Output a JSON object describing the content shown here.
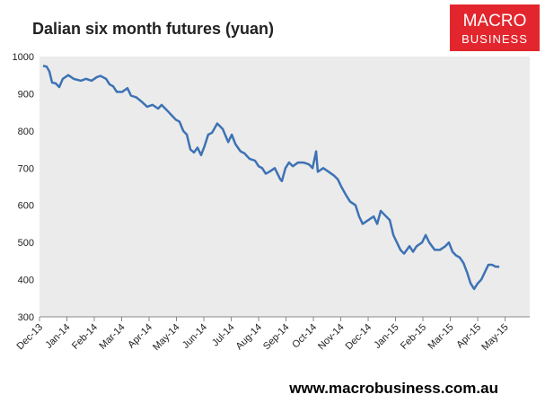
{
  "chart_data": {
    "type": "line",
    "title": "Dalian six month futures (yuan)",
    "logo": {
      "line1": "MACRO",
      "line2": "BUSINESS"
    },
    "footer": "www.macrobusiness.com.au",
    "xlim": [
      0,
      17.9
    ],
    "ylim": [
      300,
      1000
    ],
    "yticks": [
      300,
      400,
      500,
      600,
      700,
      800,
      900,
      1000
    ],
    "xticks": [
      {
        "value": 0,
        "label": "Dec-13"
      },
      {
        "value": 1,
        "label": "Jan-14"
      },
      {
        "value": 2,
        "label": "Feb-14"
      },
      {
        "value": 3,
        "label": "Mar-14"
      },
      {
        "value": 4,
        "label": "Apr-14"
      },
      {
        "value": 5,
        "label": "May-14"
      },
      {
        "value": 6,
        "label": "Jun-14"
      },
      {
        "value": 7,
        "label": "Jul-14"
      },
      {
        "value": 8,
        "label": "Aug-14"
      },
      {
        "value": 9,
        "label": "Sep-14"
      },
      {
        "value": 10,
        "label": "Oct-14"
      },
      {
        "value": 11,
        "label": "Nov-14"
      },
      {
        "value": 12,
        "label": "Dec-14"
      },
      {
        "value": 13,
        "label": "Jan-15"
      },
      {
        "value": 14,
        "label": "Feb-15"
      },
      {
        "value": 15,
        "label": "Mar-15"
      },
      {
        "value": 16,
        "label": "Apr-15"
      },
      {
        "value": 17,
        "label": "May-15"
      }
    ],
    "x": [
      0.13,
      0.26,
      0.36,
      0.46,
      0.59,
      0.72,
      0.85,
      1.05,
      1.25,
      1.51,
      1.7,
      1.9,
      2.1,
      2.23,
      2.43,
      2.56,
      2.69,
      2.82,
      3.02,
      3.21,
      3.34,
      3.54,
      3.74,
      3.93,
      4.13,
      4.33,
      4.46,
      4.66,
      4.85,
      4.98,
      5.11,
      5.25,
      5.38,
      5.51,
      5.64,
      5.77,
      5.9,
      6.03,
      6.16,
      6.3,
      6.49,
      6.69,
      6.89,
      7.02,
      7.15,
      7.34,
      7.48,
      7.67,
      7.87,
      8.0,
      8.13,
      8.26,
      8.39,
      8.59,
      8.79,
      8.85,
      8.98,
      9.11,
      9.25,
      9.44,
      9.64,
      9.84,
      9.97,
      10.1,
      10.16,
      10.36,
      10.56,
      10.75,
      10.89,
      11.02,
      11.21,
      11.34,
      11.54,
      11.67,
      11.8,
      12.0,
      12.2,
      12.33,
      12.46,
      12.59,
      12.79,
      12.92,
      13.05,
      13.18,
      13.31,
      13.51,
      13.64,
      13.77,
      13.97,
      14.1,
      14.23,
      14.43,
      14.62,
      14.82,
      14.95,
      15.08,
      15.21,
      15.34,
      15.48,
      15.61,
      15.74,
      15.87,
      16.0,
      16.13,
      16.26,
      16.39,
      16.52,
      16.66,
      16.79
    ],
    "series": [
      {
        "color": "#3d72b4",
        "values": [
          975,
          973,
          960,
          930,
          928,
          918,
          940,
          950,
          940,
          935,
          940,
          935,
          945,
          948,
          940,
          925,
          920,
          905,
          905,
          915,
          895,
          890,
          878,
          865,
          870,
          860,
          870,
          855,
          840,
          830,
          825,
          800,
          790,
          750,
          742,
          755,
          735,
          760,
          790,
          795,
          820,
          805,
          770,
          790,
          765,
          745,
          740,
          725,
          720,
          705,
          700,
          685,
          690,
          700,
          670,
          665,
          700,
          715,
          705,
          715,
          715,
          710,
          700,
          745,
          690,
          700,
          690,
          680,
          670,
          650,
          625,
          610,
          600,
          570,
          550,
          560,
          570,
          550,
          585,
          575,
          560,
          520,
          500,
          480,
          470,
          490,
          475,
          490,
          500,
          520,
          500,
          480,
          480,
          490,
          500,
          475,
          465,
          460,
          445,
          420,
          390,
          375,
          390,
          400,
          420,
          440,
          440,
          435,
          435
        ]
      }
    ]
  }
}
